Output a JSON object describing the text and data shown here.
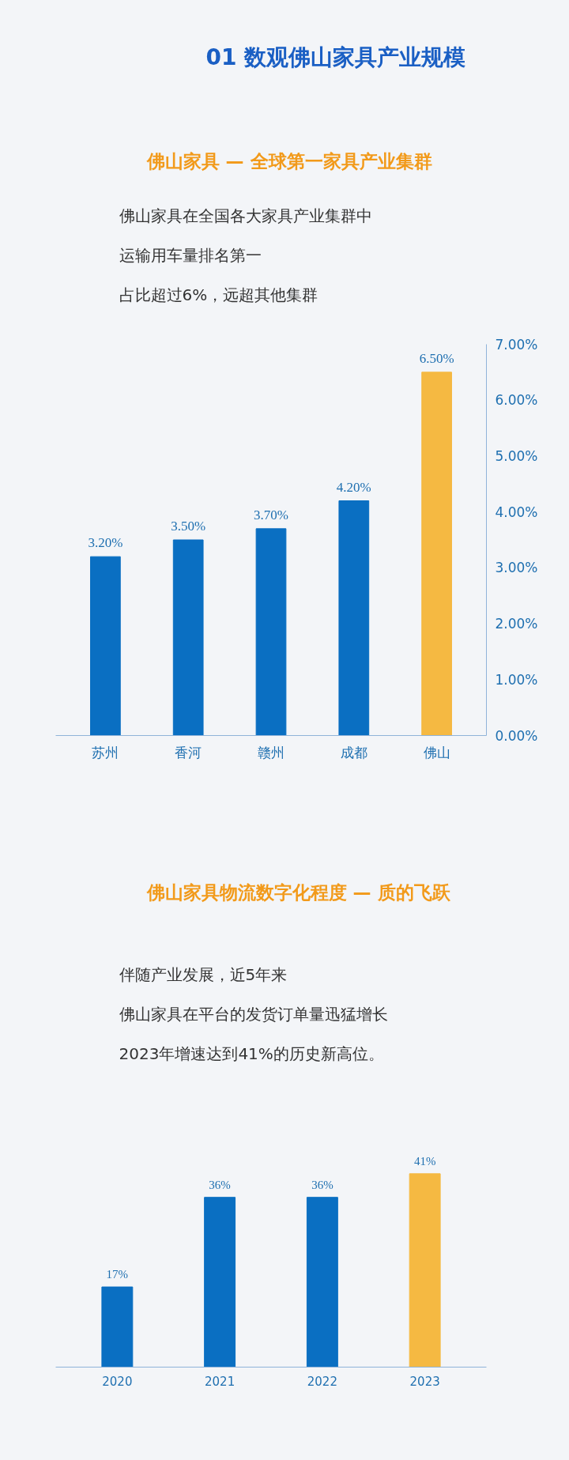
{
  "chart_data": [
    {
      "type": "bar",
      "title": "01 数观佛山家具产业规模",
      "subtitle": "佛山家具 — 全球第一家具产业集群",
      "annotations": [
        "佛山家具在全国各大家具产业集群中",
        "运输用车量排名第一",
        "占比超过6%，远超其他集群"
      ],
      "categories": [
        "苏州",
        "香河",
        "赣州",
        "成都",
        "佛山"
      ],
      "values": [
        3.2,
        3.5,
        3.7,
        4.2,
        6.5
      ],
      "value_labels": [
        "3.20%",
        "3.50%",
        "3.70%",
        "4.20%",
        "6.50%"
      ],
      "colors": [
        "#0a6fc2",
        "#0a6fc2",
        "#0a6fc2",
        "#0a6fc2",
        "#f5b942"
      ],
      "ylim": [
        0,
        7
      ],
      "yticks": [
        {
          "value": 0,
          "label": "0.00%"
        },
        {
          "value": 1,
          "label": "1.00%"
        },
        {
          "value": 2,
          "label": "2.00%"
        },
        {
          "value": 3,
          "label": "3.00%"
        },
        {
          "value": 4,
          "label": "4.00%"
        },
        {
          "value": 5,
          "label": "5.00%"
        },
        {
          "value": 6,
          "label": "6.00%"
        },
        {
          "value": 7,
          "label": "7.00%"
        }
      ],
      "grid": false
    },
    {
      "type": "bar",
      "title": "佛山家具物流数字化程度 — 质的飞跃",
      "annotations": [
        "伴随产业发展，近5年来",
        "佛山家具在平台的发货订单量迅猛增长",
        "2023年增速达到41%的历史新高位。"
      ],
      "categories": [
        "2020",
        "2021",
        "2022",
        "2023"
      ],
      "values": [
        17,
        36,
        36,
        41
      ],
      "value_labels": [
        "17%",
        "36%",
        "36%",
        "41%"
      ],
      "colors": [
        "#0a6fc2",
        "#0a6fc2",
        "#0a6fc2",
        "#f5b942"
      ],
      "grid": false
    }
  ]
}
